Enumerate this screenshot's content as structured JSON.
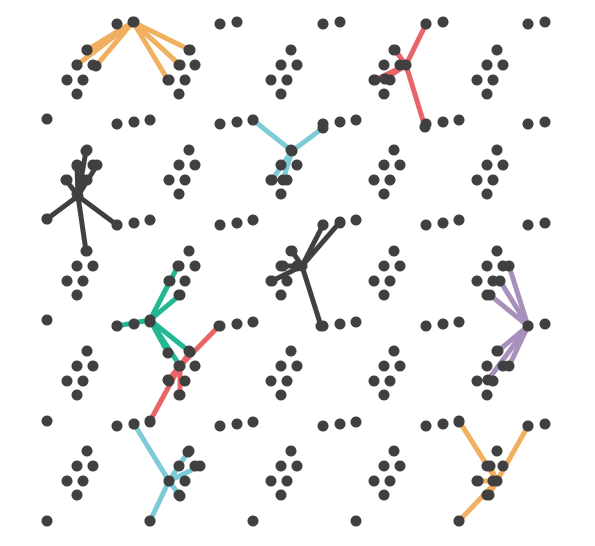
{
  "colors": {
    "background": "#ffffff",
    "node": "#404040",
    "orange": "#f0b060",
    "teal": "#7ecbd8",
    "red": "#e86468",
    "dark": "#404040",
    "green": "#22b894",
    "purple": "#a890bc"
  },
  "dot_clusters": {
    "pair_count": 34,
    "diamond_count": 20,
    "single_count": 5
  },
  "star_groups": [
    {
      "name": "orange-star-top-left",
      "color": "orange",
      "spokes": 6
    },
    {
      "name": "teal-star-top-center",
      "color": "teal",
      "spokes": 4
    },
    {
      "name": "red-star-top-right",
      "color": "red",
      "spokes": 5
    },
    {
      "name": "dark-star-left",
      "color": "dark",
      "spokes": 8
    },
    {
      "name": "dark-star-center",
      "color": "dark",
      "spokes": 6
    },
    {
      "name": "green-star-lower-left",
      "color": "green",
      "spokes": 7
    },
    {
      "name": "red-star-lower-left",
      "color": "red",
      "spokes": 5
    },
    {
      "name": "purple-star-right",
      "color": "purple",
      "spokes": 6
    },
    {
      "name": "teal-star-bottom-left",
      "color": "teal",
      "spokes": 5
    },
    {
      "name": "orange-star-bottom-right",
      "color": "orange",
      "spokes": 6
    }
  ]
}
